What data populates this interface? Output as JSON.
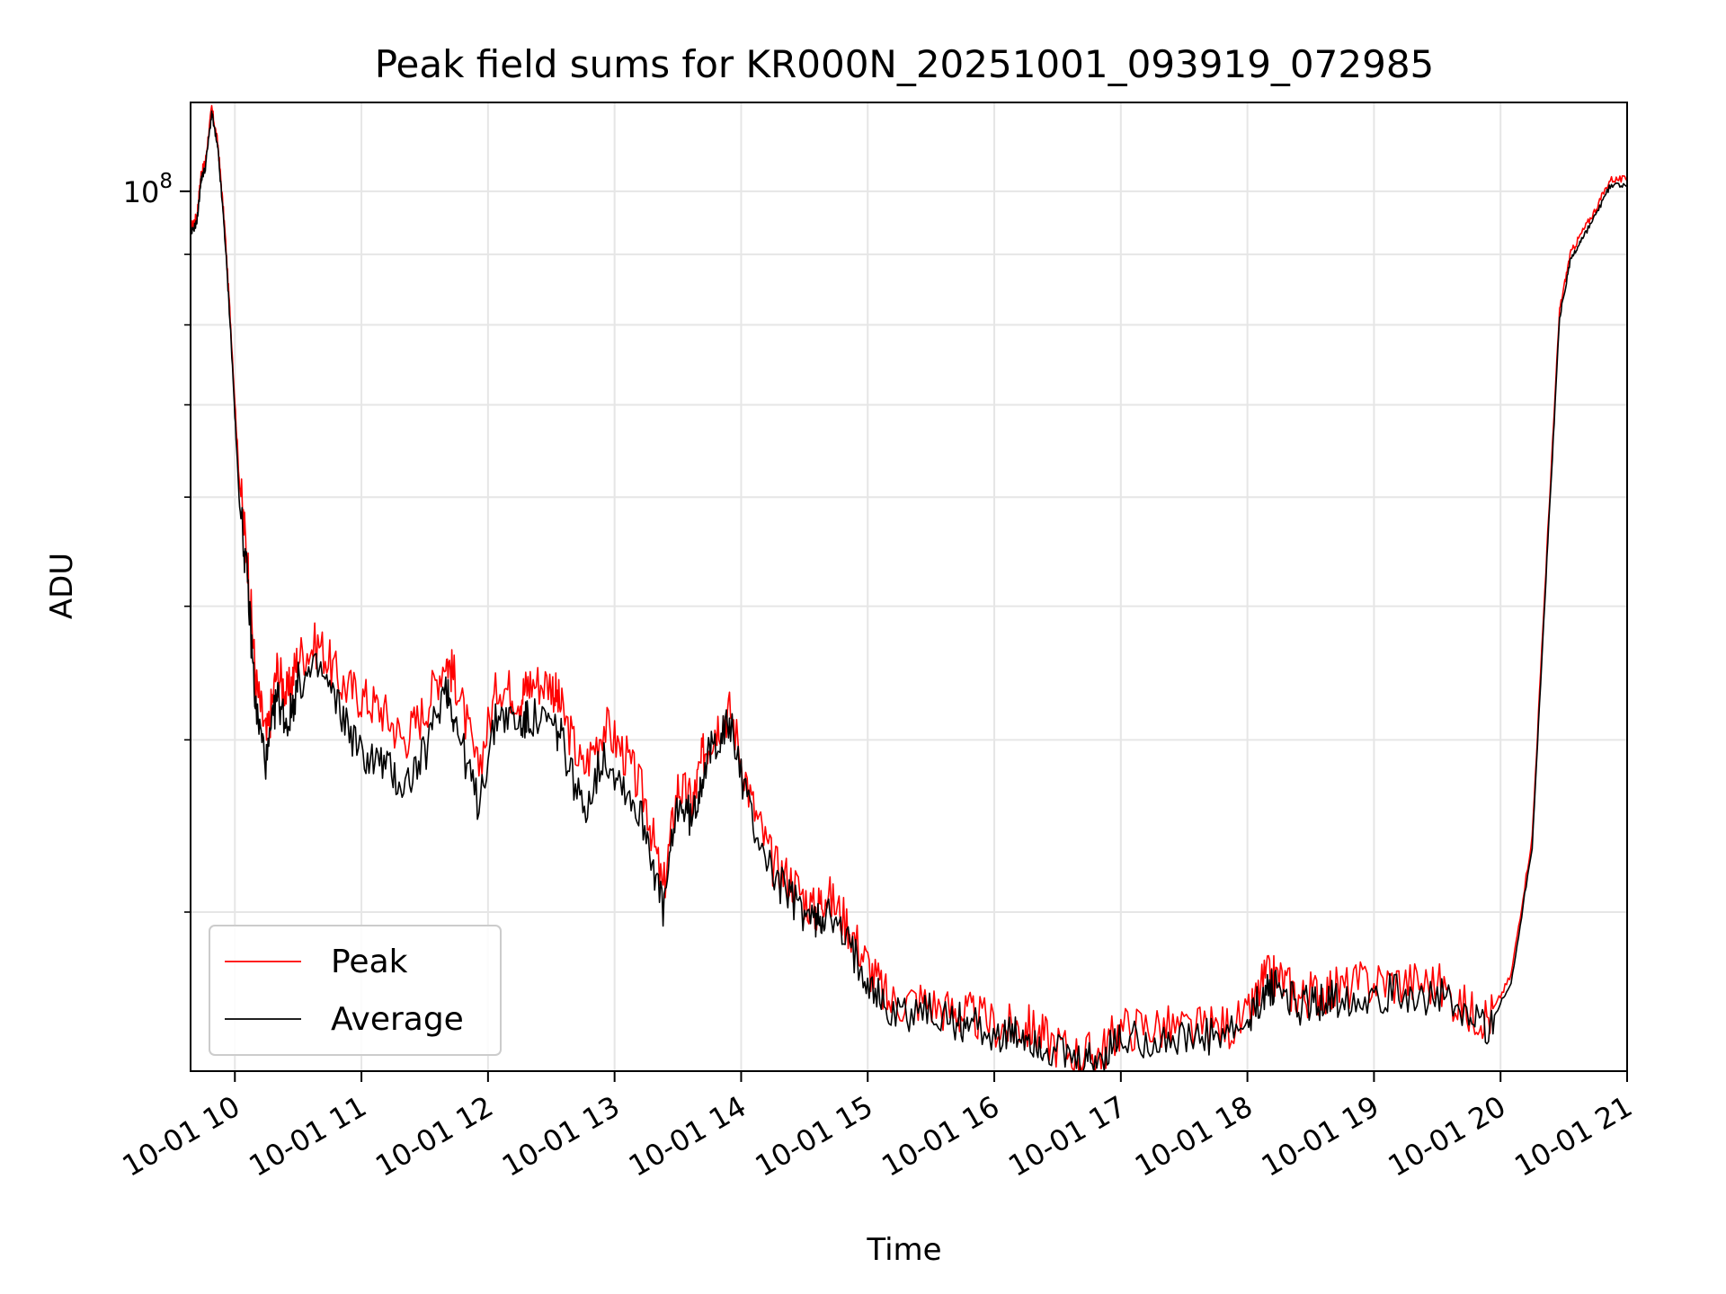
{
  "chart_data": {
    "type": "line",
    "title": "Peak field sums for KR000N_20251001_093919_072985",
    "xlabel": "Time",
    "ylabel": "ADU",
    "y_scale": "log",
    "y_tick_label_base": "10",
    "y_tick_label_exp": "8",
    "y_tick_value": 100000000,
    "ylim": [
      23000000,
      116000000
    ],
    "xlim": [
      "2025-10-01 09:39",
      "2025-10-01 21:00"
    ],
    "x_tick_labels": [
      "10-01 10",
      "10-01 11",
      "10-01 12",
      "10-01 13",
      "10-01 14",
      "10-01 15",
      "10-01 16",
      "10-01 17",
      "10-01 18",
      "10-01 19",
      "10-01 20",
      "10-01 21"
    ],
    "x_tick_values": [
      "2025-10-01 10:00",
      "2025-10-01 11:00",
      "2025-10-01 12:00",
      "2025-10-01 13:00",
      "2025-10-01 14:00",
      "2025-10-01 15:00",
      "2025-10-01 16:00",
      "2025-10-01 17:00",
      "2025-10-01 18:00",
      "2025-10-01 19:00",
      "2025-10-01 20:00",
      "2025-10-01 21:00"
    ],
    "grid": true,
    "legend_position": "lower-left",
    "series": [
      {
        "name": "Peak",
        "color": "#ff0000",
        "x": [
          "2025-10-01 09:39",
          "2025-10-01 09:42",
          "2025-10-01 09:44",
          "2025-10-01 09:46",
          "2025-10-01 09:49",
          "2025-10-01 09:52",
          "2025-10-01 09:55",
          "2025-10-01 09:58",
          "2025-10-01 10:02",
          "2025-10-01 10:06",
          "2025-10-01 10:10",
          "2025-10-01 10:15",
          "2025-10-01 10:20",
          "2025-10-01 10:25",
          "2025-10-01 10:30",
          "2025-10-01 10:40",
          "2025-10-01 10:50",
          "2025-10-01 11:00",
          "2025-10-01 11:10",
          "2025-10-01 11:20",
          "2025-10-01 11:30",
          "2025-10-01 11:40",
          "2025-10-01 11:45",
          "2025-10-01 11:55",
          "2025-10-01 12:05",
          "2025-10-01 12:15",
          "2025-10-01 12:20",
          "2025-10-01 12:30",
          "2025-10-01 12:35",
          "2025-10-01 12:45",
          "2025-10-01 12:55",
          "2025-10-01 13:05",
          "2025-10-01 13:15",
          "2025-10-01 13:23",
          "2025-10-01 13:30",
          "2025-10-01 13:37",
          "2025-10-01 13:42",
          "2025-10-01 13:48",
          "2025-10-01 13:55",
          "2025-10-01 14:05",
          "2025-10-01 14:15",
          "2025-10-01 14:25",
          "2025-10-01 14:35",
          "2025-10-01 14:40",
          "2025-10-01 14:50",
          "2025-10-01 15:00",
          "2025-10-01 15:10",
          "2025-10-01 15:25",
          "2025-10-01 15:40",
          "2025-10-01 15:50",
          "2025-10-01 16:05",
          "2025-10-01 16:15",
          "2025-10-01 16:25",
          "2025-10-01 16:40",
          "2025-10-01 16:50",
          "2025-10-01 17:00",
          "2025-10-01 17:15",
          "2025-10-01 17:30",
          "2025-10-01 17:45",
          "2025-10-01 18:00",
          "2025-10-01 18:08",
          "2025-10-01 18:15",
          "2025-10-01 18:25",
          "2025-10-01 18:35",
          "2025-10-01 18:45",
          "2025-10-01 19:00",
          "2025-10-01 19:15",
          "2025-10-01 19:30",
          "2025-10-01 19:45",
          "2025-10-01 19:55",
          "2025-10-01 20:05",
          "2025-10-01 20:15",
          "2025-10-01 20:22",
          "2025-10-01 20:28",
          "2025-10-01 20:33",
          "2025-10-01 20:38",
          "2025-10-01 20:45",
          "2025-10-01 20:52",
          "2025-10-01 21:00"
        ],
        "y": [
          94000000,
          96000000,
          103000000,
          105000000,
          115000000,
          108000000,
          95000000,
          80000000,
          62000000,
          54000000,
          44000000,
          40000000,
          45000000,
          43000000,
          46000000,
          47000000,
          44000000,
          43000000,
          42000000,
          40000000,
          42000000,
          46000000,
          44000000,
          38000000,
          44000000,
          43000000,
          44000000,
          44000000,
          42000000,
          38000000,
          41000000,
          39000000,
          36000000,
          31000000,
          37000000,
          36000000,
          39000000,
          41000000,
          42000000,
          36000000,
          32500000,
          31500000,
          30000000,
          31000000,
          29500000,
          27500000,
          25800000,
          25900000,
          25400000,
          25200000,
          24700000,
          24800000,
          24300000,
          23600000,
          23700000,
          24700000,
          24800000,
          24600000,
          24700000,
          25000000,
          26800000,
          26900000,
          26000000,
          26300000,
          26400000,
          26700000,
          26700000,
          26600000,
          25400000,
          25200000,
          27000000,
          34000000,
          55000000,
          82000000,
          90000000,
          93000000,
          97000000,
          102000000,
          102000000
        ]
      },
      {
        "name": "Average",
        "color": "#000000",
        "x": [
          "2025-10-01 09:39",
          "2025-10-01 09:42",
          "2025-10-01 09:44",
          "2025-10-01 09:46",
          "2025-10-01 09:49",
          "2025-10-01 09:52",
          "2025-10-01 09:55",
          "2025-10-01 09:58",
          "2025-10-01 10:02",
          "2025-10-01 10:06",
          "2025-10-01 10:10",
          "2025-10-01 10:15",
          "2025-10-01 10:20",
          "2025-10-01 10:25",
          "2025-10-01 10:30",
          "2025-10-01 10:40",
          "2025-10-01 10:50",
          "2025-10-01 11:00",
          "2025-10-01 11:10",
          "2025-10-01 11:20",
          "2025-10-01 11:30",
          "2025-10-01 11:40",
          "2025-10-01 11:45",
          "2025-10-01 11:55",
          "2025-10-01 12:05",
          "2025-10-01 12:15",
          "2025-10-01 12:20",
          "2025-10-01 12:30",
          "2025-10-01 12:35",
          "2025-10-01 12:45",
          "2025-10-01 12:55",
          "2025-10-01 13:05",
          "2025-10-01 13:15",
          "2025-10-01 13:23",
          "2025-10-01 13:30",
          "2025-10-01 13:37",
          "2025-10-01 13:42",
          "2025-10-01 13:48",
          "2025-10-01 13:55",
          "2025-10-01 14:05",
          "2025-10-01 14:15",
          "2025-10-01 14:25",
          "2025-10-01 14:35",
          "2025-10-01 14:40",
          "2025-10-01 14:50",
          "2025-10-01 15:00",
          "2025-10-01 15:10",
          "2025-10-01 15:25",
          "2025-10-01 15:40",
          "2025-10-01 15:50",
          "2025-10-01 16:05",
          "2025-10-01 16:15",
          "2025-10-01 16:25",
          "2025-10-01 16:40",
          "2025-10-01 16:50",
          "2025-10-01 17:00",
          "2025-10-01 17:15",
          "2025-10-01 17:30",
          "2025-10-01 17:45",
          "2025-10-01 18:00",
          "2025-10-01 18:08",
          "2025-10-01 18:15",
          "2025-10-01 18:25",
          "2025-10-01 18:35",
          "2025-10-01 18:45",
          "2025-10-01 19:00",
          "2025-10-01 19:15",
          "2025-10-01 19:30",
          "2025-10-01 19:45",
          "2025-10-01 19:55",
          "2025-10-01 20:05",
          "2025-10-01 20:15",
          "2025-10-01 20:22",
          "2025-10-01 20:28",
          "2025-10-01 20:33",
          "2025-10-01 20:38",
          "2025-10-01 20:45",
          "2025-10-01 20:52",
          "2025-10-01 21:00"
        ],
        "y": [
          93000000,
          95000000,
          102000000,
          104000000,
          114000000,
          107000000,
          94000000,
          79000000,
          60000000,
          52000000,
          42000000,
          38500000,
          43000000,
          41000000,
          44000000,
          45000000,
          42000000,
          39000000,
          38500000,
          37000000,
          39000000,
          44000000,
          41000000,
          36000000,
          42000000,
          41000000,
          41500000,
          41000000,
          40000000,
          35500000,
          39000000,
          37000000,
          34500000,
          30000000,
          36000000,
          35000000,
          38000000,
          40000000,
          41000000,
          35000000,
          32000000,
          30500000,
          29500000,
          30000000,
          28500000,
          27000000,
          25300000,
          25500000,
          25000000,
          24900000,
          24300000,
          24400000,
          23900000,
          23200000,
          23400000,
          24300000,
          24300000,
          24200000,
          24300000,
          24700000,
          26300000,
          26500000,
          25600000,
          25900000,
          26000000,
          26200000,
          26200000,
          26100000,
          25000000,
          24900000,
          26600000,
          33500000,
          54000000,
          81000000,
          89000000,
          92000000,
          96000000,
          101000000,
          101000000
        ]
      }
    ]
  }
}
